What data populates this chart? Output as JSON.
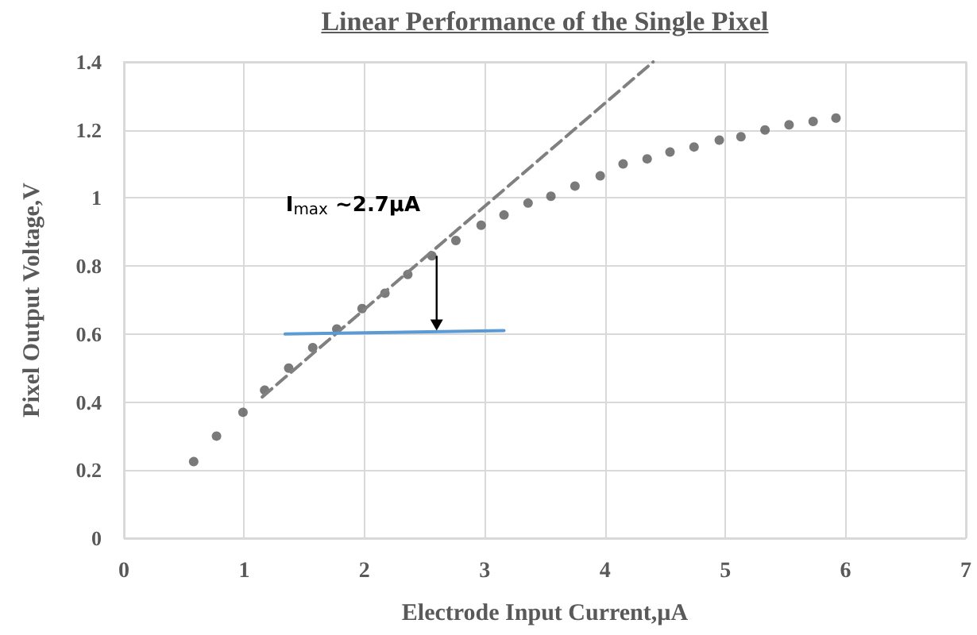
{
  "chart_data": {
    "type": "scatter",
    "title": "Linear Performance of the Single Pixel",
    "xlabel": "Electrode Input Current,µA",
    "ylabel": "Pixel Output Voltage,V",
    "xlim": [
      0,
      7
    ],
    "xticks": [
      0,
      1,
      2,
      3,
      4,
      5,
      6,
      7
    ],
    "ylim": [
      0,
      1.4
    ],
    "yticks": [
      0,
      0.2,
      0.4,
      0.6,
      0.8,
      1,
      1.2,
      1.4
    ],
    "grid": true,
    "annotations": [
      {
        "text": "I$_{max}$ ~2.7µA",
        "x": 2.6,
        "y": 0.83
      }
    ],
    "series": [
      {
        "marker": "circle",
        "color": "#595959",
        "x": [
          0.58,
          0.77,
          0.99,
          1.17,
          1.37,
          1.57,
          1.77,
          1.98,
          2.17,
          2.36,
          2.56,
          2.76,
          2.97,
          3.16,
          3.36,
          3.55,
          3.75,
          3.96,
          4.15,
          4.35,
          4.54,
          4.74,
          4.95,
          5.13,
          5.33,
          5.53,
          5.73,
          5.92
        ],
        "values": [
          0.225,
          0.3,
          0.37,
          0.435,
          0.5,
          0.56,
          0.615,
          0.675,
          0.72,
          0.775,
          0.83,
          0.875,
          0.92,
          0.95,
          0.985,
          1.005,
          1.035,
          1.065,
          1.1,
          1.115,
          1.135,
          1.15,
          1.17,
          1.18,
          1.2,
          1.215,
          1.225,
          1.235
        ]
      },
      {
        "type": "line",
        "line_style": "dashed",
        "marker": "none",
        "color": "#808080",
        "x": [
          1.15,
          4.4
        ],
        "values": [
          0.415,
          1.4
        ]
      },
      {
        "type": "line",
        "line_style": "solid",
        "marker": "none",
        "color": "#5b9bd5",
        "x": [
          1.34,
          3.16
        ],
        "values": [
          0.6,
          0.61
        ]
      }
    ]
  }
}
